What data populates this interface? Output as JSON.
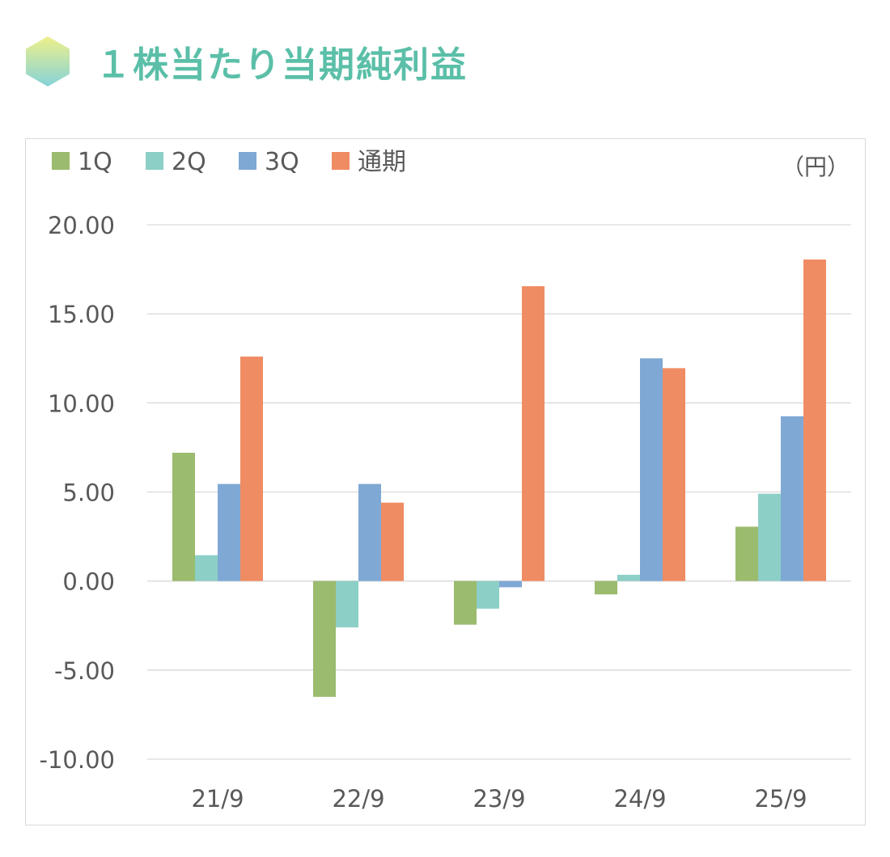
{
  "heading": {
    "title": "１株当たり当期純利益"
  },
  "chart_data": {
    "type": "bar",
    "unit_label": "（円）",
    "categories": [
      "21/9",
      "22/9",
      "23/9",
      "24/9",
      "25/9"
    ],
    "series": [
      {
        "name": "1Q",
        "color": "#9bbb6e",
        "values": [
          7.2,
          -6.5,
          -2.45,
          -0.75,
          3.05
        ]
      },
      {
        "name": "2Q",
        "color": "#8ccfc6",
        "values": [
          1.45,
          -2.6,
          -1.55,
          0.35,
          4.9
        ]
      },
      {
        "name": "3Q",
        "color": "#7fa8d4",
        "values": [
          5.45,
          5.45,
          -0.35,
          12.5,
          9.25
        ]
      },
      {
        "name": "通期",
        "color": "#f08c63",
        "values": [
          12.6,
          4.4,
          16.55,
          11.95,
          18.05
        ]
      }
    ],
    "ylim": [
      -10,
      20
    ],
    "yticks": [
      "-10.00",
      "-5.00",
      "0.00",
      "5.00",
      "10.00",
      "15.00",
      "20.00"
    ],
    "grid": true,
    "legend": "top-left"
  }
}
